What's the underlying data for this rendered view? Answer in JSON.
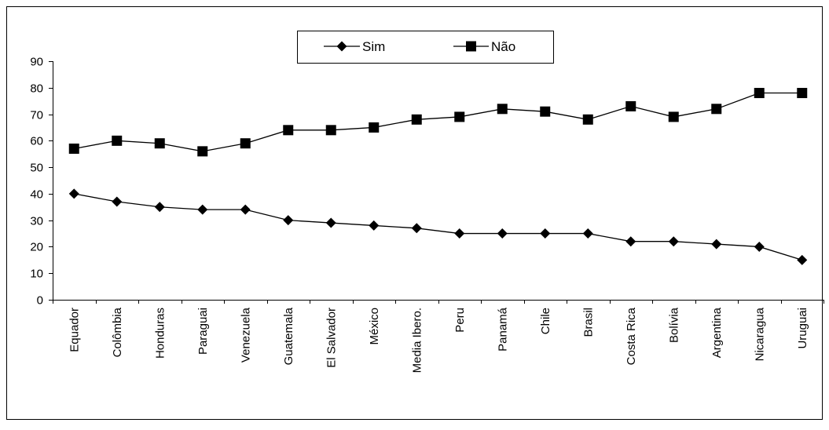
{
  "chart_data": {
    "type": "line",
    "title": "",
    "xlabel": "",
    "ylabel": "",
    "categories": [
      "Equador",
      "Colômbia",
      "Honduras",
      "Paraguai",
      "Venezuela",
      "Guatemala",
      "El Salvador",
      "México",
      "Media Ibero.",
      "Peru",
      "Panamá",
      "Chile",
      "Brasil",
      "Costa Rica",
      "Bolívia",
      "Argentina",
      "Nicaragua",
      "Uruguai"
    ],
    "series": [
      {
        "name": "Sim",
        "marker": "diamond",
        "color": "#000000",
        "values": [
          40,
          37,
          35,
          34,
          34,
          30,
          29,
          28,
          27,
          25,
          25,
          25,
          25,
          22,
          22,
          21,
          20,
          15
        ]
      },
      {
        "name": "Não",
        "marker": "square",
        "color": "#000000",
        "values": [
          57,
          60,
          59,
          56,
          59,
          64,
          64,
          65,
          68,
          69,
          72,
          71,
          68,
          73,
          69,
          72,
          78,
          78
        ]
      }
    ],
    "ylim": [
      0,
      90
    ],
    "yticks": [
      "0",
      "10",
      "20",
      "30",
      "40",
      "50",
      "60",
      "70",
      "80",
      "90"
    ],
    "grid": false,
    "legend_position": "top-center"
  }
}
